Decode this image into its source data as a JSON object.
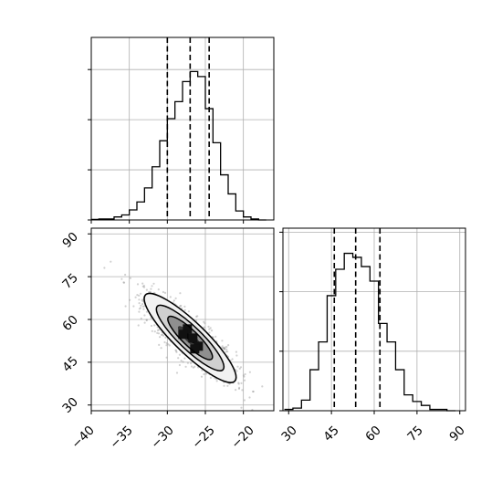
{
  "chart_data": {
    "type": "corner",
    "parameters": [
      {
        "histogram": {
          "type": "histogram",
          "range": [
            -40,
            -16
          ],
          "bins": [
            -39.5,
            -38.5,
            -37.5,
            -36.5,
            -35.5,
            -34.5,
            -33.5,
            -32.5,
            -31.5,
            -30.5,
            -29.5,
            -28.5,
            -27.5,
            -26.5,
            -25.5,
            -24.5,
            -23.5,
            -22.5,
            -21.5,
            -20.5,
            -19.5,
            -18.5,
            -17.5
          ],
          "counts": [
            0.5,
            1,
            1,
            3,
            5,
            10,
            18,
            32,
            53,
            79,
            101,
            118,
            138,
            148,
            143,
            111,
            77,
            45,
            26,
            9,
            3,
            1,
            0
          ],
          "quantiles": [
            -30.0,
            -27.0,
            -24.5
          ],
          "grid": true
        }
      },
      {
        "histogram": {
          "type": "histogram",
          "range": [
            28,
            92
          ],
          "bins": [
            30,
            33,
            36,
            39,
            42,
            45,
            48,
            51,
            54,
            57,
            60,
            63,
            66,
            69,
            72,
            75,
            78,
            81,
            84,
            87
          ],
          "counts": [
            1,
            2,
            8,
            31,
            52,
            87,
            107,
            119,
            116,
            109,
            98,
            66,
            52,
            31,
            12,
            7,
            4,
            1,
            1,
            0
          ],
          "quantiles": [
            46.0,
            53.5,
            62.0
          ],
          "grid": true
        }
      }
    ],
    "scatter_2d": {
      "type": "scatter+contour",
      "x_ticks": [
        "−40",
        "−35",
        "−30",
        "−25",
        "−20"
      ],
      "y_ticks": [
        "30",
        "45",
        "60",
        "75",
        "90"
      ],
      "xlim": [
        -40,
        -16
      ],
      "ylim": [
        28,
        92
      ],
      "correlation": -0.85,
      "contour_levels": 3,
      "grid": true
    },
    "diag2_x_ticks": [
      "30",
      "45",
      "60",
      "75",
      "90"
    ]
  }
}
